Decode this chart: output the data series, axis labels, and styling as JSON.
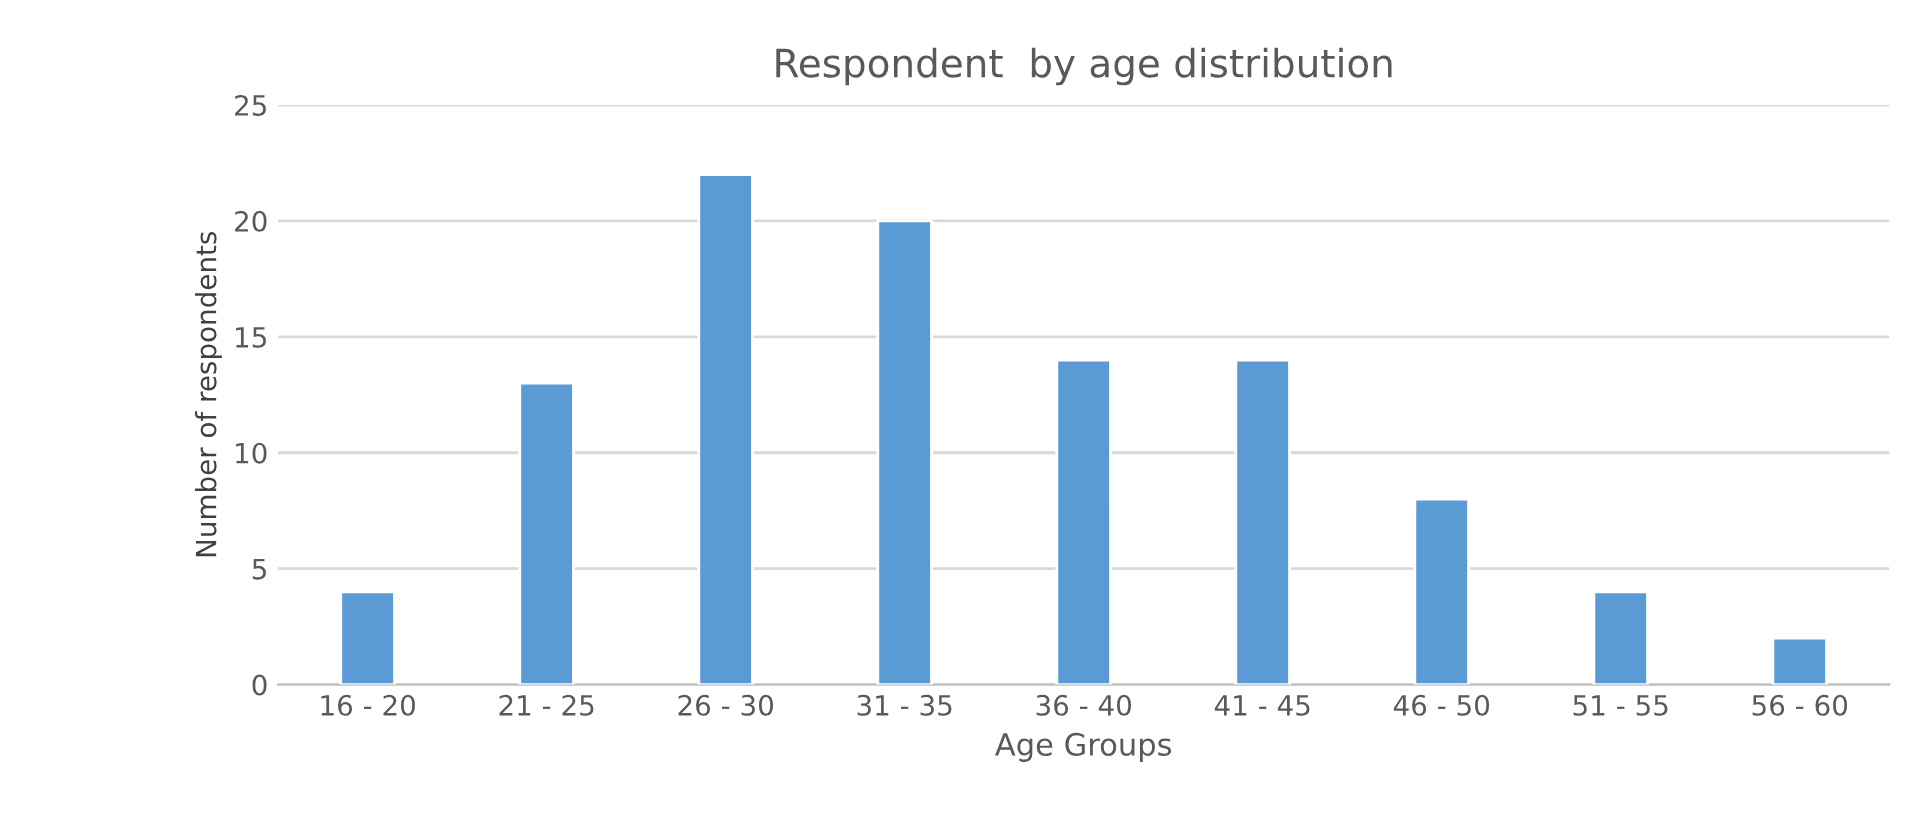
{
  "chart_data": {
    "type": "bar",
    "title": "Respondent  by age distribution",
    "xlabel": "Age Groups",
    "ylabel": "Number of respondents",
    "categories": [
      "16 - 20",
      "21 - 25",
      "26 - 30",
      "31 - 35",
      "36 - 40",
      "41 - 45",
      "46 - 50",
      "51 - 55",
      "56 - 60"
    ],
    "values": [
      4,
      13,
      22,
      20,
      14,
      14,
      8,
      4,
      2
    ],
    "color": "#5b9bd5",
    "ylim": [
      0,
      25
    ],
    "yticks": [
      0,
      5,
      10,
      15,
      20,
      25
    ],
    "grid": "y",
    "legend": false
  }
}
